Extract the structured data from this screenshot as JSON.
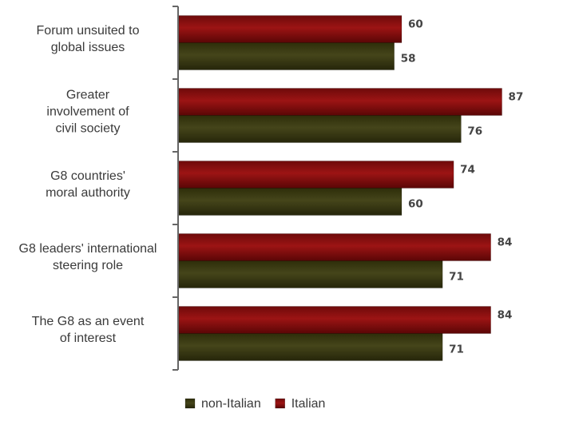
{
  "chart_data": {
    "type": "bar",
    "orientation": "horizontal",
    "categories": [
      [
        "Forum unsuited to",
        "global issues"
      ],
      [
        "Greater",
        "involvement of",
        "civil society"
      ],
      [
        "G8 countries'",
        "moral authority"
      ],
      [
        "G8 leaders' international",
        "steering role"
      ],
      [
        "The G8 as an event",
        "of interest"
      ]
    ],
    "series": [
      {
        "name": "Italian",
        "color": "#8b0d0d",
        "values": [
          60,
          87,
          74,
          84,
          84
        ]
      },
      {
        "name": "non-Italian",
        "color": "#3a3a0e",
        "values": [
          58,
          76,
          60,
          71,
          71
        ]
      }
    ],
    "xlim": [
      0,
      100
    ],
    "grid": false,
    "legend_position": "bottom",
    "legend_order": [
      "non-Italian",
      "Italian"
    ]
  }
}
